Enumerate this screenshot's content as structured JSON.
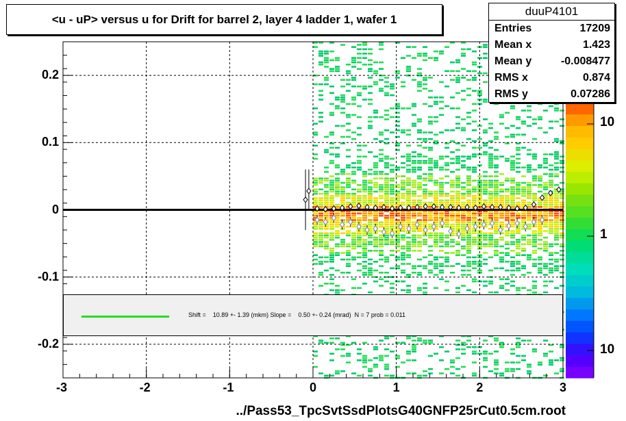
{
  "title": "<u - uP>       versus   u for Drift for barrel 2, layer 4 ladder 1, wafer 1",
  "stats": {
    "name": "duuP4101",
    "rows": [
      {
        "label": "Entries",
        "value": "17209"
      },
      {
        "label": "Mean x",
        "value": "1.423"
      },
      {
        "label": "Mean y",
        "value": "-0.008477"
      },
      {
        "label": "RMS x",
        "value": "0.874"
      },
      {
        "label": "RMS y",
        "value": "0.07286"
      }
    ]
  },
  "fit": {
    "text": "Shift =    10.89 +- 1.39 (mkm) Slope =    0.50 +- 0.24 (mrad)  N = 7 prob = 0.011",
    "line_color": "#22dd22"
  },
  "x_axis_title": "../Pass53_TpcSvtSsdPlotsG40GNFP25rCut0.5cm.root",
  "colors": {
    "zero_line": "#000000",
    "profile_open": "#000000",
    "profile_blue": "#8080c0"
  },
  "chart_data": {
    "type": "heatmap",
    "xlim": [
      -3,
      3
    ],
    "ylim": [
      -0.25,
      0.25
    ],
    "x_ticks": [
      -3,
      -2,
      -1,
      0,
      1,
      2,
      3
    ],
    "y_ticks": [
      -0.2,
      -0.1,
      0,
      0.1,
      0.2
    ],
    "x_tick_labels": [
      "-3",
      "-2",
      "-1",
      "0",
      "1",
      "2",
      "3"
    ],
    "y_tick_labels": [
      "-0.2",
      "-0.1",
      "0",
      "0.1",
      "0.2"
    ],
    "grid": true,
    "z_scale": "log",
    "z_labels": [
      "10",
      "1",
      "10"
    ],
    "data_x_range": [
      0,
      3
    ],
    "core_band_y": [
      -0.04,
      0.04
    ],
    "profile_mean": {
      "x": [
        -0.09,
        -0.05,
        0.05,
        0.15,
        0.25,
        0.35,
        0.45,
        0.55,
        0.65,
        0.75,
        0.85,
        0.95,
        1.05,
        1.15,
        1.25,
        1.35,
        1.45,
        1.55,
        1.65,
        1.75,
        1.85,
        1.95,
        2.05,
        2.15,
        2.25,
        2.35,
        2.45,
        2.55,
        2.65,
        2.75,
        2.85,
        2.95
      ],
      "y": [
        0.015,
        0.028,
        0.002,
        0.001,
        0.002,
        0.003,
        0.005,
        0.006,
        0.004,
        0.003,
        0.004,
        0.002,
        0.003,
        0.003,
        0.004,
        0.005,
        0.005,
        0.004,
        0.004,
        0.003,
        0.004,
        0.003,
        0.005,
        0.004,
        0.004,
        0.003,
        0.002,
        0.003,
        0.008,
        0.018,
        0.025,
        0.03
      ]
    },
    "profile_offset": {
      "x": [
        0.05,
        0.15,
        0.25,
        0.35,
        0.45,
        0.55,
        0.65,
        0.75,
        0.85,
        0.95,
        1.05,
        1.15,
        1.25,
        1.35,
        1.45,
        1.55,
        1.65,
        1.75,
        1.85,
        1.95,
        2.05,
        2.15,
        2.25,
        2.35,
        2.45,
        2.55,
        2.65,
        2.75
      ],
      "y": [
        -0.015,
        -0.018,
        -0.012,
        -0.022,
        -0.018,
        -0.025,
        -0.03,
        -0.028,
        -0.033,
        -0.035,
        -0.025,
        -0.028,
        -0.022,
        -0.03,
        -0.025,
        -0.02,
        -0.032,
        -0.036,
        -0.028,
        -0.025,
        -0.022,
        -0.02,
        -0.03,
        -0.024,
        -0.02,
        -0.025,
        -0.018,
        -0.015
      ]
    }
  }
}
